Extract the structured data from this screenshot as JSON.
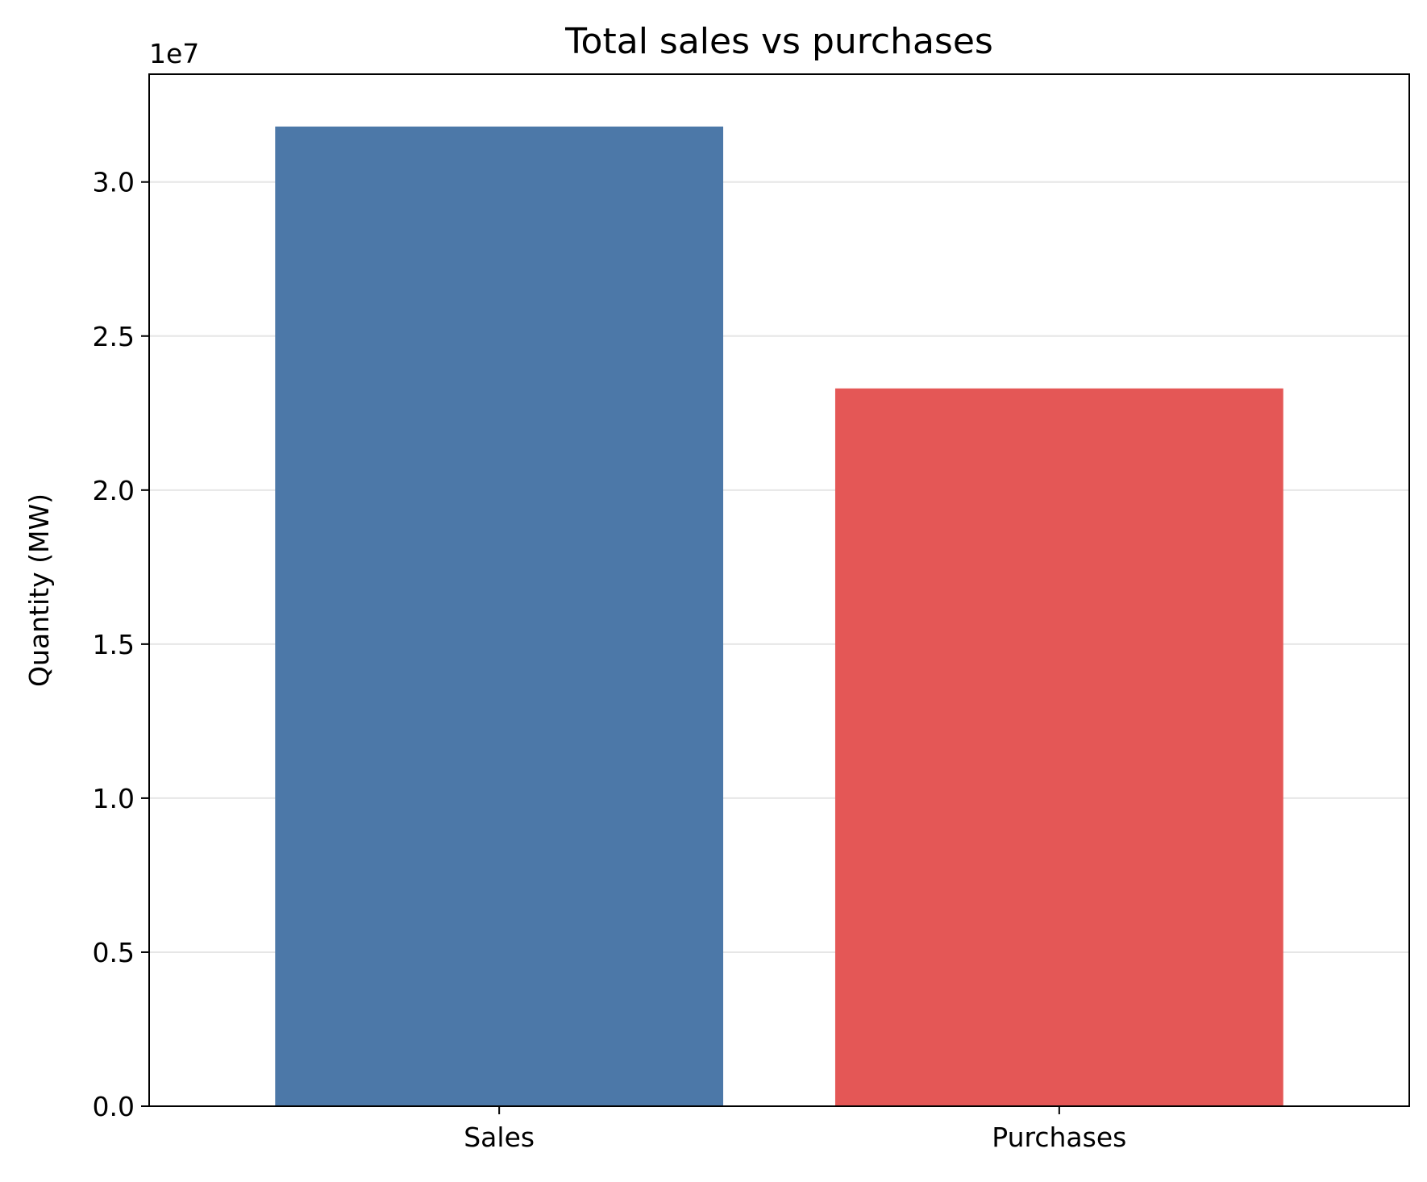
{
  "chart_data": {
    "type": "bar",
    "title": "Total sales vs purchases",
    "xlabel": "",
    "ylabel": "Quantity (MW)",
    "categories": [
      "Sales",
      "Purchases"
    ],
    "values": [
      31800000,
      23300000
    ],
    "colors": [
      "#4c78a8",
      "#e45756"
    ],
    "ylim": [
      0,
      33500000
    ],
    "y_ticks": [
      0,
      5000000,
      10000000,
      15000000,
      20000000,
      25000000,
      30000000
    ],
    "y_tick_labels": [
      "0.0",
      "0.5",
      "1.0",
      "1.5",
      "2.0",
      "2.5",
      "3.0"
    ],
    "y_offset_label": "1e7",
    "grid": "y",
    "legend": "none"
  }
}
